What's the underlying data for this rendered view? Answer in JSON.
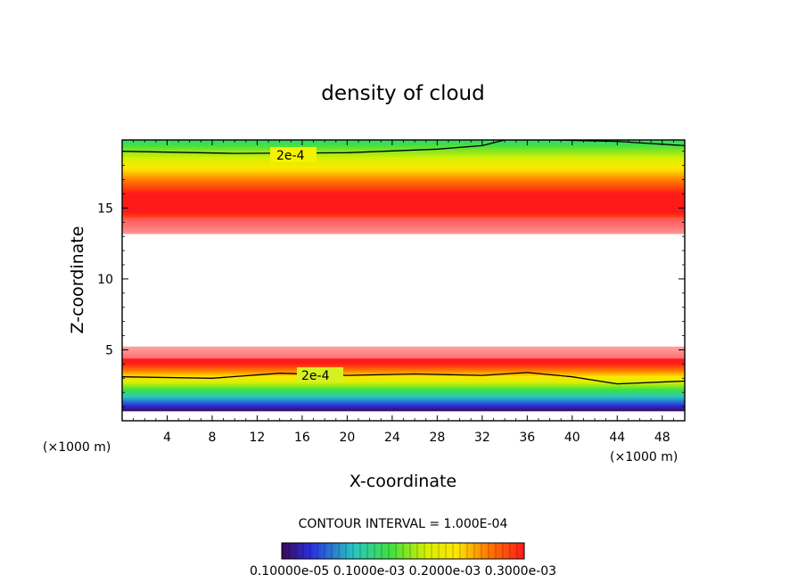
{
  "chart_data": {
    "type": "heatmap",
    "title": "density of cloud",
    "xlabel": "X-coordinate",
    "ylabel": "Z-coordinate",
    "x_unit": "(×1000 m)",
    "z_unit": "(×1000 m)",
    "xlim": [
      0,
      50
    ],
    "ylim": [
      0,
      19.8
    ],
    "x_ticks": [
      4,
      8,
      12,
      16,
      20,
      24,
      28,
      32,
      36,
      40,
      44,
      48
    ],
    "y_ticks": [
      5,
      10,
      15
    ],
    "contour_interval_text": "CONTOUR INTERVAL = 1.000E-04",
    "contour_labels": [
      "2e-4",
      "2e-4"
    ],
    "colorbar_labels_text": "0.10000e-05 0.1000e-03 0.2000e-03 0.3000e-03",
    "colorbar_range": [
      1e-06,
      0.0003
    ],
    "colors": {
      "min": "#3b0f6f",
      "low": "#2a2ce0",
      "mid_low": "#20d060",
      "mid": "#c8f000",
      "mid_high": "#ffee00",
      "high": "#ff7a00",
      "max": "#ff1a1a"
    },
    "upper_layer": {
      "base_km": 13.2,
      "top_km": 19.8,
      "peak_density_height_km": 15.2,
      "peak_density": 0.00034,
      "density_at_top": 0.00012
    },
    "lower_layer": {
      "base_km": 0.7,
      "top_km": 5.2,
      "peak_density_height_km": 4.3,
      "peak_density": 0.00032,
      "density_at_base": 1e-06
    },
    "contour_2e4_upper_km": [
      [
        0,
        19.0
      ],
      [
        10,
        18.85
      ],
      [
        20,
        18.9
      ],
      [
        28,
        19.15
      ],
      [
        32,
        19.4
      ],
      [
        34,
        19.8
      ],
      [
        38,
        19.8
      ],
      [
        44,
        19.7
      ],
      [
        50,
        19.4
      ]
    ],
    "contour_2e4_lower_km": [
      [
        0,
        3.1
      ],
      [
        8,
        3.0
      ],
      [
        14,
        3.35
      ],
      [
        20,
        3.2
      ],
      [
        26,
        3.3
      ],
      [
        32,
        3.2
      ],
      [
        36,
        3.4
      ],
      [
        40,
        3.1
      ],
      [
        44,
        2.6
      ],
      [
        50,
        2.8
      ]
    ]
  }
}
